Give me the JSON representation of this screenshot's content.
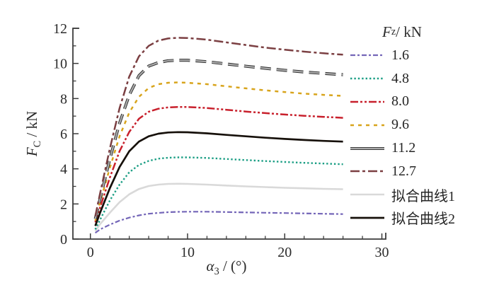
{
  "labels": {
    "y": {
      "sym": "F",
      "sub": "C",
      "unit": " / kN"
    },
    "x": {
      "sym": "α",
      "sub": "3",
      "unit": " / (°)"
    },
    "legend_title": {
      "sym": "F",
      "sub": "z",
      "unit": " / kN"
    }
  },
  "chart_data": {
    "type": "line",
    "title": "",
    "xlabel": "α₃ / (°)",
    "ylabel": "F_C / kN",
    "xlim": [
      -1.8,
      30.4
    ],
    "ylim": [
      0,
      12
    ],
    "x_ticks": [
      0,
      10,
      20,
      30
    ],
    "y_ticks": [
      0,
      2,
      4,
      6,
      8,
      10,
      12
    ],
    "x_minor_step": 2,
    "y_minor_step": 1,
    "grid": false,
    "legend_position": "right",
    "legend_title": "F_z / kN",
    "x": [
      0.5,
      1,
      2,
      3,
      4,
      5,
      6,
      7,
      8,
      9,
      10,
      12,
      14,
      16,
      18,
      20,
      22,
      24,
      26
    ],
    "series": [
      {
        "name": "1.6",
        "color": "#7466b8",
        "dash": "7 3 3 3",
        "width": 2.2,
        "values": [
          0.35,
          0.55,
          0.82,
          1.05,
          1.22,
          1.35,
          1.44,
          1.49,
          1.53,
          1.55,
          1.56,
          1.56,
          1.54,
          1.52,
          1.5,
          1.48,
          1.46,
          1.44,
          1.42
        ]
      },
      {
        "name": "4.8",
        "color": "#1b9e84",
        "dash": "2.4 3",
        "width": 2.4,
        "values": [
          0.55,
          1.1,
          2.2,
          3.1,
          3.8,
          4.22,
          4.45,
          4.58,
          4.63,
          4.65,
          4.65,
          4.62,
          4.56,
          4.5,
          4.44,
          4.39,
          4.34,
          4.3,
          4.26
        ]
      },
      {
        "name": "8.0",
        "color": "#c8202c",
        "dash": "11 3 3 3 3 3",
        "width": 2.5,
        "values": [
          0.95,
          1.8,
          3.5,
          5.0,
          6.1,
          6.85,
          7.25,
          7.42,
          7.5,
          7.52,
          7.52,
          7.46,
          7.36,
          7.26,
          7.17,
          7.09,
          7.02,
          6.96,
          6.9
        ]
      },
      {
        "name": "9.6",
        "color": "#d8a41c",
        "dash": "5 6",
        "width": 2.5,
        "values": [
          1.05,
          2.1,
          4.05,
          5.85,
          7.2,
          8.1,
          8.6,
          8.82,
          8.9,
          8.92,
          8.9,
          8.82,
          8.7,
          8.58,
          8.47,
          8.37,
          8.28,
          8.21,
          8.15
        ]
      },
      {
        "name": "11.2",
        "color": "#ababab",
        "edge": "#2f2f2f",
        "dash": "15 8",
        "width": 2.2,
        "legend_solid": true,
        "values": [
          1.15,
          2.3,
          4.55,
          6.6,
          8.2,
          9.3,
          9.85,
          10.05,
          10.15,
          10.18,
          10.18,
          10.1,
          9.97,
          9.84,
          9.72,
          9.61,
          9.51,
          9.43,
          9.36
        ]
      },
      {
        "name": "12.7",
        "color": "#7b3f42",
        "dash": "13 4 4 4",
        "width": 2.5,
        "values": [
          1.3,
          2.6,
          5.15,
          7.45,
          9.25,
          10.4,
          11.0,
          11.3,
          11.42,
          11.46,
          11.45,
          11.35,
          11.2,
          11.05,
          10.9,
          10.78,
          10.67,
          10.58,
          10.5
        ]
      },
      {
        "name": "拟合曲线1",
        "color": "#d9d9d9",
        "dash": "",
        "width": 2.6,
        "values": [
          0.45,
          0.85,
          1.5,
          2.1,
          2.55,
          2.85,
          3.02,
          3.1,
          3.14,
          3.15,
          3.14,
          3.1,
          3.05,
          3.0,
          2.96,
          2.92,
          2.89,
          2.86,
          2.84
        ]
      },
      {
        "name": "拟合曲线2",
        "color": "#16100a",
        "dash": "",
        "width": 2.7,
        "values": [
          0.75,
          1.5,
          2.9,
          4.1,
          5.0,
          5.55,
          5.85,
          6.0,
          6.07,
          6.09,
          6.08,
          6.02,
          5.93,
          5.85,
          5.77,
          5.7,
          5.64,
          5.59,
          5.55
        ]
      }
    ],
    "axis_color": "#3c3c3c",
    "tick_label_color": "#2b2b2b",
    "draw_order": [
      6,
      0,
      1,
      2,
      3,
      4,
      5,
      7
    ]
  }
}
